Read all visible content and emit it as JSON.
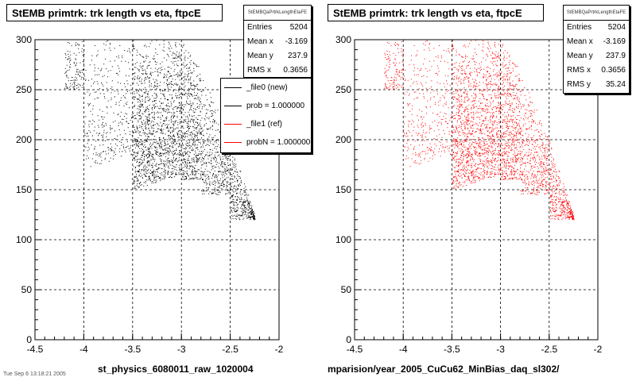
{
  "chart_data": [
    {
      "type": "scatter",
      "title": "StEMB primtrk: trk length vs eta, ftpcE",
      "stats_name": "StEMBQaPrtrkLengthEtaFE",
      "stats": [
        {
          "label": "Entries",
          "value": "5204"
        },
        {
          "label": "Mean x",
          "value": "-3.169"
        },
        {
          "label": "Mean y",
          "value": "237.9"
        },
        {
          "label": "RMS x",
          "value": "0.3656"
        }
      ],
      "legend": [
        {
          "label": "_file0 (new)",
          "color": "#000000"
        },
        {
          "label": "prob = 1.000000",
          "color": "#000000"
        },
        {
          "label": "_file1 (ref)",
          "color": "#ff0000"
        },
        {
          "label": "probN = 1.000000",
          "color": "#ff0000"
        }
      ],
      "xlabel": "st_physics_6080011_raw_1020004",
      "xlim": [
        -4.5,
        -2
      ],
      "ylim": [
        0,
        300
      ],
      "x_ticks": [
        "-4.5",
        "-4",
        "-3.5",
        "-3",
        "-2.5",
        "-2"
      ],
      "y_ticks": [
        "0",
        "50",
        "100",
        "150",
        "200",
        "250",
        "300"
      ],
      "grid": true,
      "marker_color": "#000000",
      "entries": 5204
    },
    {
      "type": "scatter",
      "title": "StEMB primtrk: trk length vs eta, ftpcE",
      "stats_name": "StEMBQaPrtrkLengthEtaFE",
      "stats": [
        {
          "label": "Entries",
          "value": "5204"
        },
        {
          "label": "Mean x",
          "value": "-3.169"
        },
        {
          "label": "Mean y",
          "value": "237.9"
        },
        {
          "label": "RMS x",
          "value": "0.3656"
        },
        {
          "label": "RMS y",
          "value": "35.24"
        }
      ],
      "xlabel": "mparision/year_2005_CuCu62_MinBias_daq_sl302/",
      "xlim": [
        -4.5,
        -2
      ],
      "ylim": [
        0,
        300
      ],
      "x_ticks": [
        "-4.5",
        "-4",
        "-3.5",
        "-3",
        "-2.5",
        "-2"
      ],
      "y_ticks": [
        "0",
        "50",
        "100",
        "150",
        "200",
        "250",
        "300"
      ],
      "grid": true,
      "marker_color": "#ff0000",
      "entries": 5204
    }
  ],
  "footer_text": "Tue Sep 6 13:18:21 2005"
}
